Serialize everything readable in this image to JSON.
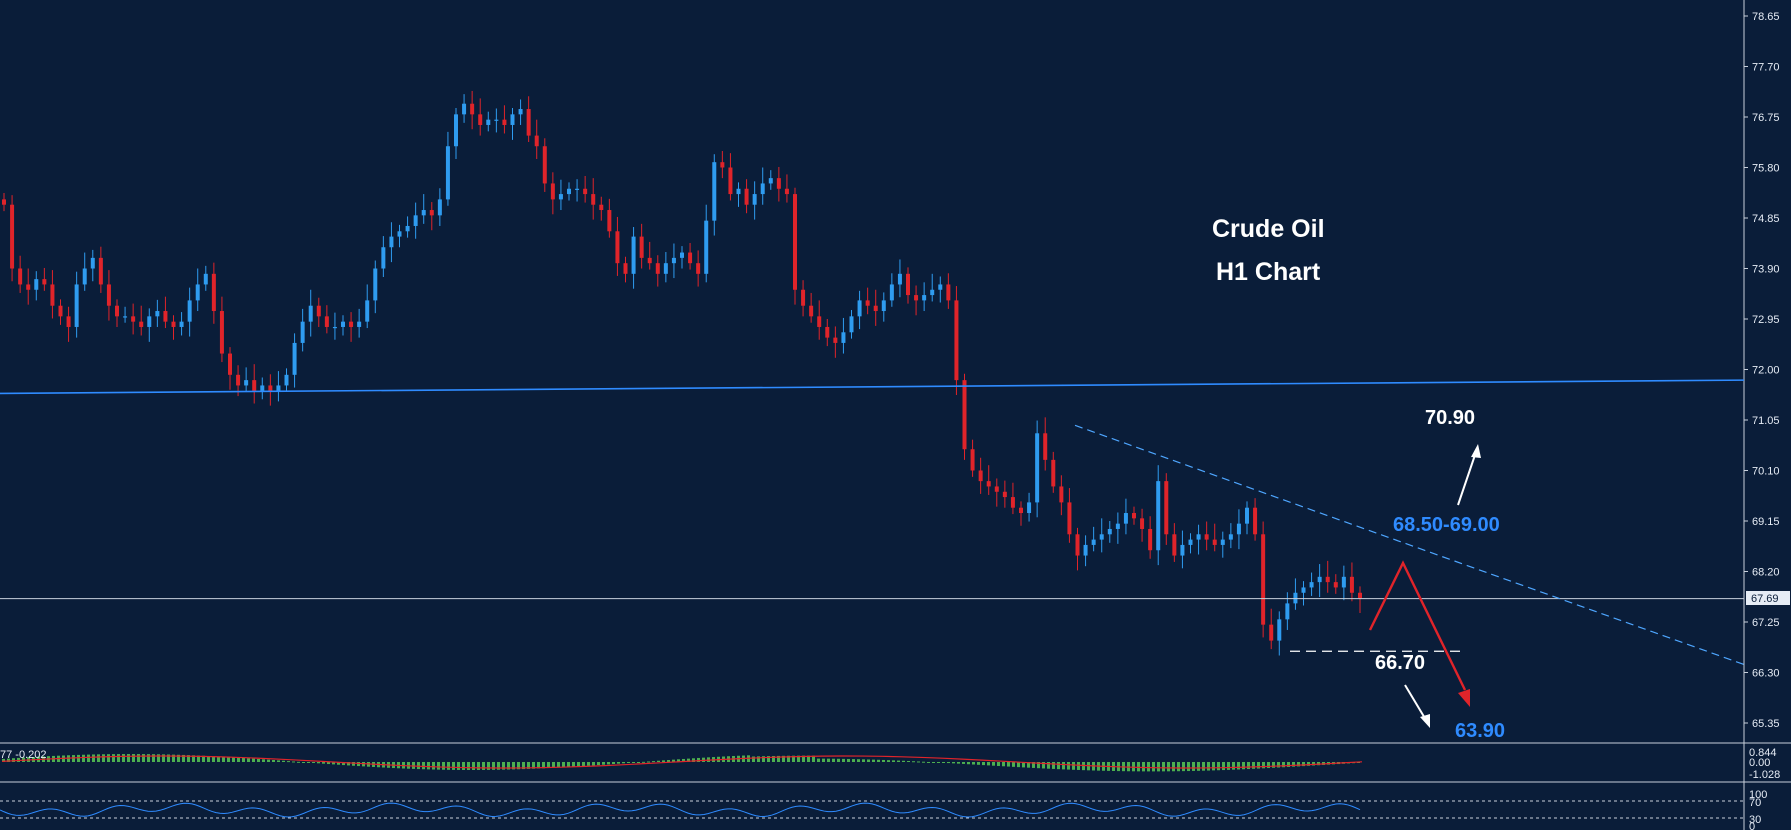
{
  "chart_data": {
    "type": "candlestick",
    "title_line1": "Crude Oil",
    "title_line2": "H1  Chart",
    "y_ticks": [
      "78.65",
      "77.70",
      "76.75",
      "75.80",
      "74.85",
      "73.90",
      "72.95",
      "72.00",
      "71.05",
      "70.10",
      "69.15",
      "68.20",
      "67.25",
      "66.30",
      "65.35"
    ],
    "y_tick_values": [
      78.65,
      77.7,
      76.75,
      75.8,
      74.85,
      73.9,
      72.95,
      72.0,
      71.05,
      70.1,
      69.15,
      68.2,
      67.25,
      66.3,
      65.35
    ],
    "ylim": [
      64.9,
      78.9
    ],
    "current_price": "67.69",
    "current_price_value": 67.69,
    "support_line_value_start": 71.55,
    "support_line_value_end": 71.8,
    "trendline_start": 70.95,
    "trendline_end": 66.45,
    "dashed_support_value": 66.7,
    "annotations": {
      "target_up": "70.90",
      "resistance_zone": "68.50-69.00",
      "support": "66.70",
      "target_down": "63.90"
    },
    "candles_close": [
      75.1,
      73.9,
      73.6,
      73.5,
      73.7,
      73.6,
      73.2,
      73.0,
      72.8,
      73.6,
      73.9,
      74.1,
      73.6,
      73.2,
      73.0,
      73.0,
      72.9,
      72.8,
      73.0,
      73.1,
      72.9,
      72.8,
      72.9,
      73.3,
      73.6,
      73.8,
      73.1,
      72.3,
      71.9,
      71.7,
      71.8,
      71.6,
      71.7,
      71.6,
      71.7,
      71.9,
      72.5,
      72.9,
      73.2,
      73.0,
      72.8,
      72.8,
      72.9,
      72.8,
      72.9,
      73.3,
      73.9,
      74.3,
      74.5,
      74.6,
      74.7,
      74.9,
      75.0,
      74.9,
      75.2,
      76.2,
      76.8,
      77.0,
      76.8,
      76.6,
      76.7,
      76.7,
      76.6,
      76.8,
      76.9,
      76.4,
      76.2,
      75.5,
      75.2,
      75.3,
      75.4,
      75.4,
      75.3,
      75.1,
      75.0,
      74.6,
      74.0,
      73.8,
      74.5,
      74.1,
      74.0,
      73.8,
      74.0,
      74.1,
      74.2,
      74.0,
      73.8,
      74.8,
      75.9,
      75.8,
      75.3,
      75.4,
      75.1,
      75.3,
      75.5,
      75.6,
      75.4,
      75.3,
      73.5,
      73.2,
      73.0,
      72.8,
      72.6,
      72.5,
      72.7,
      73.0,
      73.3,
      73.2,
      73.1,
      73.3,
      73.6,
      73.8,
      73.4,
      73.3,
      73.4,
      73.5,
      73.6,
      73.3,
      71.8,
      70.5,
      70.1,
      69.9,
      69.8,
      69.7,
      69.6,
      69.4,
      69.3,
      69.5,
      70.8,
      70.3,
      69.8,
      69.5,
      68.9,
      68.5,
      68.7,
      68.8,
      68.9,
      69.0,
      69.1,
      69.3,
      69.2,
      69.0,
      68.6,
      69.9,
      68.9,
      68.5,
      68.7,
      68.8,
      68.9,
      68.8,
      68.7,
      68.8,
      68.9,
      69.1,
      69.4,
      68.9,
      67.2,
      66.9,
      67.3,
      67.6,
      67.8,
      67.9,
      68.0,
      68.1,
      68.0,
      67.9,
      68.1,
      67.8,
      67.7
    ],
    "macd_label": "77 -0.202",
    "macd_ticks": [
      "0.844",
      "0.00",
      "-1.028"
    ],
    "rsi_ticks": [
      "100",
      "70",
      "30",
      "0"
    ]
  },
  "colors": {
    "background": "#0a1d39",
    "bull_candle": "#2f9cf0",
    "bear_candle": "#e0242a",
    "support_line": "#2f8bff",
    "trendline": "#4ea6ff",
    "macd_hist": "#4caf50",
    "macd_signal": "#e0242a",
    "rsi_line": "#2f8bff",
    "forecast_arrow": "#e0242a"
  }
}
